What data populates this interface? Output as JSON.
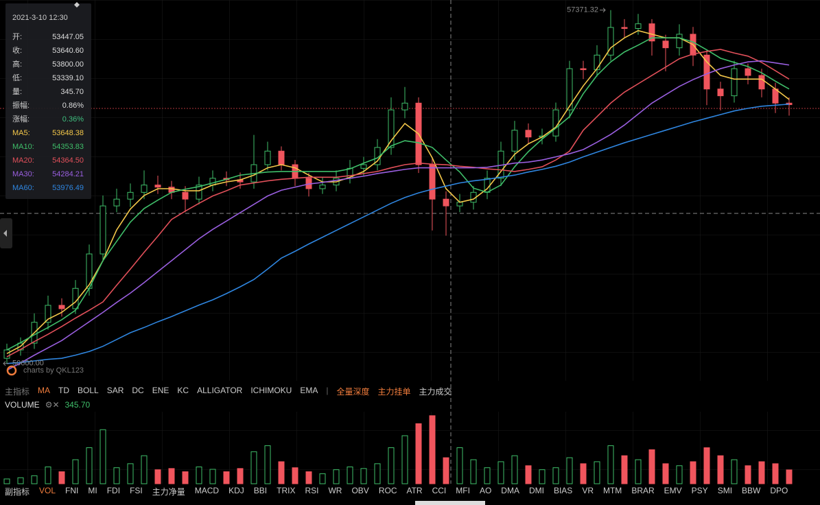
{
  "tooltip": {
    "date": "2021-3-10 12:30",
    "rows": [
      {
        "label": "开:",
        "value": "53447.05"
      },
      {
        "label": "收:",
        "value": "53640.60"
      },
      {
        "label": "高:",
        "value": "53800.00"
      },
      {
        "label": "低:",
        "value": "53339.10"
      },
      {
        "label": "量:",
        "value": "345.70"
      },
      {
        "label": "振幅:",
        "value": "0.86%"
      },
      {
        "label": "涨幅:",
        "value": "0.36%",
        "color": "#3fbf7f"
      },
      {
        "label": "MA5:",
        "value": "53648.38",
        "color": "#f5c84a"
      },
      {
        "label": "MA10:",
        "value": "54353.83",
        "color": "#3fbf6a"
      },
      {
        "label": "MA20:",
        "value": "54364.50",
        "color": "#e2505a"
      },
      {
        "label": "MA30:",
        "value": "54284.21",
        "color": "#9a5fe0"
      },
      {
        "label": "MA60:",
        "value": "53976.49",
        "color": "#2f86e0"
      }
    ]
  },
  "chart_data": {
    "type": "candlestick",
    "ylim": [
      50400,
      57500
    ],
    "up_color": "#3fbf6a",
    "down_color": "#f0555d",
    "open": [
      50700,
      50860,
      50990,
      51390,
      51715,
      51650,
      52040,
      52700,
      53620,
      53750,
      53880,
      54020,
      53980,
      53880,
      53750,
      54020,
      54150,
      54120,
      54080,
      54410,
      54670,
      54410,
      54150,
      53950,
      54020,
      54150,
      54340,
      54410,
      54740,
      55460,
      55590,
      54410,
      53750,
      53620,
      53690,
      53880,
      54150,
      54670,
      55070,
      54940,
      54960,
      55460,
      56250,
      56230,
      56510,
      57040,
      57020,
      57110,
      56780,
      56650,
      56910,
      56510,
      55860,
      55730,
      56250,
      56120,
      55860,
      55590
    ],
    "high": [
      50980,
      51100,
      51560,
      51900,
      51850,
      52200,
      52880,
      53820,
      53950,
      54050,
      54300,
      54200,
      54100,
      54000,
      54180,
      54300,
      54280,
      54260,
      54980,
      54850,
      54760,
      54500,
      54250,
      54180,
      54300,
      54500,
      54560,
      54900,
      55700,
      55900,
      55700,
      54550,
      53900,
      53850,
      54000,
      54300,
      54850,
      55250,
      55200,
      55100,
      55600,
      56400,
      56400,
      56700,
      57371.32,
      57200,
      57300,
      57200,
      56900,
      57100,
      57050,
      56600,
      56000,
      56400,
      56350,
      56250,
      55980,
      55700
    ],
    "low": [
      50600,
      50750,
      50880,
      51250,
      51500,
      51550,
      51900,
      52550,
      53500,
      53600,
      53750,
      53850,
      53750,
      53500,
      53650,
      53900,
      54000,
      53950,
      53950,
      54300,
      54300,
      54000,
      53800,
      53850,
      53900,
      54050,
      54200,
      54300,
      54600,
      55300,
      54250,
      53150,
      53050,
      53500,
      53550,
      53750,
      54000,
      54500,
      54800,
      54800,
      54850,
      55300,
      56050,
      56100,
      56400,
      56850,
      56900,
      56500,
      56200,
      56500,
      56300,
      55550,
      55450,
      55600,
      55950,
      55700,
      55400,
      55350
    ],
    "close": [
      50860,
      50990,
      51390,
      51715,
      51650,
      52040,
      52700,
      53620,
      53750,
      53880,
      54020,
      53980,
      53880,
      53750,
      54020,
      54150,
      54120,
      54080,
      54410,
      54670,
      54410,
      54150,
      53950,
      54020,
      54150,
      54340,
      54410,
      54740,
      55460,
      55590,
      54410,
      53750,
      53620,
      53690,
      53880,
      54150,
      54670,
      55070,
      54940,
      54960,
      55460,
      56250,
      56230,
      56510,
      57040,
      57020,
      57110,
      56780,
      56650,
      56910,
      56510,
      55860,
      55730,
      56250,
      56120,
      55860,
      55590,
      55560
    ],
    "series": [
      {
        "name": "MA5",
        "color": "#f5c84a",
        "values": [
          50790,
          50930,
          51190,
          51450,
          51580,
          51780,
          52110,
          52570,
          53160,
          53560,
          53820,
          53950,
          53950,
          53910,
          53910,
          54020,
          54080,
          54120,
          54210,
          54350,
          54410,
          54350,
          54210,
          54080,
          54080,
          54170,
          54280,
          54480,
          54870,
          55200,
          55000,
          54540,
          53950,
          53690,
          53750,
          53950,
          54280,
          54610,
          54810,
          54940,
          55130,
          55530,
          55920,
          56250,
          56650,
          56840,
          56980,
          56910,
          56840,
          56840,
          56710,
          56380,
          56120,
          56050,
          56050,
          56050,
          55860,
          55660
        ]
      },
      {
        "name": "MA10",
        "color": "#3fbf6a",
        "values": [
          50860,
          51000,
          51150,
          51290,
          51440,
          51620,
          52040,
          52570,
          52940,
          53310,
          53570,
          53730,
          53880,
          53940,
          53990,
          54060,
          54130,
          54210,
          54240,
          54270,
          54280,
          54280,
          54280,
          54280,
          54280,
          54330,
          54440,
          54540,
          54770,
          54870,
          54830,
          54740,
          54500,
          54270,
          53960,
          53880,
          54020,
          54370,
          54660,
          54900,
          55110,
          55330,
          55770,
          56120,
          56380,
          56570,
          56700,
          56840,
          56840,
          56840,
          56760,
          56610,
          56450,
          56370,
          56290,
          56170,
          56010,
          55860
        ]
      },
      {
        "name": "MA20",
        "color": "#e2505a",
        "values": [
          50730,
          50870,
          51020,
          51160,
          51310,
          51470,
          51620,
          51780,
          52100,
          52410,
          52730,
          53040,
          53360,
          53520,
          53670,
          53810,
          53910,
          54020,
          54060,
          54100,
          54130,
          54150,
          54170,
          54170,
          54170,
          54200,
          54240,
          54280,
          54350,
          54410,
          54440,
          54420,
          54410,
          54380,
          54360,
          54330,
          54310,
          54280,
          54320,
          54370,
          54500,
          54670,
          55070,
          55330,
          55590,
          55800,
          55960,
          56120,
          56280,
          56440,
          56530,
          56580,
          56620,
          56550,
          56490,
          56370,
          56210,
          56050
        ]
      },
      {
        "name": "MA30",
        "color": "#9a5fe0",
        "values": [
          50470,
          50610,
          50760,
          50900,
          51040,
          51220,
          51400,
          51580,
          51770,
          51950,
          52150,
          52360,
          52570,
          52780,
          52990,
          53170,
          53330,
          53490,
          53650,
          53810,
          53920,
          53980,
          54040,
          54070,
          54110,
          54150,
          54190,
          54240,
          54280,
          54320,
          54350,
          54350,
          54350,
          54350,
          54350,
          54360,
          54400,
          54440,
          54460,
          54500,
          54560,
          54620,
          54700,
          54840,
          54990,
          55170,
          55380,
          55590,
          55750,
          55910,
          56040,
          56150,
          56250,
          56320,
          56380,
          56400,
          56360,
          56320
        ]
      },
      {
        "name": "MA60",
        "color": "#2f86e0",
        "values": [
          50600,
          50620,
          50650,
          50680,
          50700,
          50760,
          50830,
          50930,
          51060,
          51190,
          51290,
          51400,
          51500,
          51610,
          51720,
          51820,
          51940,
          52070,
          52210,
          52410,
          52620,
          52750,
          52890,
          53020,
          53150,
          53280,
          53410,
          53540,
          53670,
          53780,
          53870,
          53940,
          54000,
          54060,
          54100,
          54130,
          54170,
          54210,
          54270,
          54320,
          54380,
          54460,
          54560,
          54650,
          54740,
          54830,
          54910,
          54990,
          55070,
          55150,
          55230,
          55300,
          55370,
          55440,
          55490,
          55530,
          55550,
          55570
        ]
      }
    ],
    "max_price": 57371.32,
    "min_price": {
      "value": 50600,
      "label": "50600.00"
    },
    "watermark": "charts by QKL123",
    "volume": {
      "name": "VOLUME",
      "ylim": [
        0,
        1800
      ],
      "values": [
        120,
        150,
        200,
        420,
        300,
        600,
        900,
        1350,
        400,
        500,
        700,
        350,
        380,
        300,
        420,
        360,
        300,
        380,
        800,
        950,
        550,
        400,
        300,
        250,
        350,
        420,
        380,
        500,
        900,
        1200,
        1500,
        1700,
        650,
        900,
        600,
        400,
        550,
        700,
        450,
        350,
        400,
        650,
        500,
        550,
        950,
        700,
        600,
        850,
        500,
        450,
        550,
        900,
        700,
        600,
        450,
        550,
        500,
        345.7
      ],
      "current": {
        "value": 345.7,
        "label": "345.70"
      }
    }
  },
  "main_toolbar": [
    {
      "text": "主指标",
      "color": "#777"
    },
    {
      "text": "MA",
      "color": "#f07c3c"
    },
    {
      "text": "TD"
    },
    {
      "text": "BOLL"
    },
    {
      "text": "SAR"
    },
    {
      "text": "DC"
    },
    {
      "text": "ENE"
    },
    {
      "text": "KC"
    },
    {
      "text": "ALLIGATOR"
    },
    {
      "text": "ICHIMOKU"
    },
    {
      "text": "EMA"
    },
    {
      "text": "|",
      "color": "#666"
    },
    {
      "text": "全量深度",
      "color": "#f07c3c"
    },
    {
      "text": "主力挂单",
      "color": "#f07c3c"
    },
    {
      "text": "主力成交"
    }
  ],
  "sub_toolbar": [
    {
      "text": "副指标"
    },
    {
      "text": "VOL",
      "color": "#f07c3c"
    },
    {
      "text": "FNI"
    },
    {
      "text": "MI"
    },
    {
      "text": "FDI"
    },
    {
      "text": "FSI"
    },
    {
      "text": "主力净量"
    },
    {
      "text": "MACD"
    },
    {
      "text": "KDJ"
    },
    {
      "text": "BBI"
    },
    {
      "text": "TRIX"
    },
    {
      "text": "RSI"
    },
    {
      "text": "WR"
    },
    {
      "text": "OBV"
    },
    {
      "text": "ROC"
    },
    {
      "text": "ATR"
    },
    {
      "text": "CCI"
    },
    {
      "text": "MFI"
    },
    {
      "text": "AO"
    },
    {
      "text": "DMA"
    },
    {
      "text": "DMI"
    },
    {
      "text": "BIAS"
    },
    {
      "text": "VR"
    },
    {
      "text": "MTM"
    },
    {
      "text": "BRAR"
    },
    {
      "text": "EMV"
    },
    {
      "text": "PSY"
    },
    {
      "text": "SMI"
    },
    {
      "text": "BBW"
    },
    {
      "text": "DPO"
    }
  ]
}
